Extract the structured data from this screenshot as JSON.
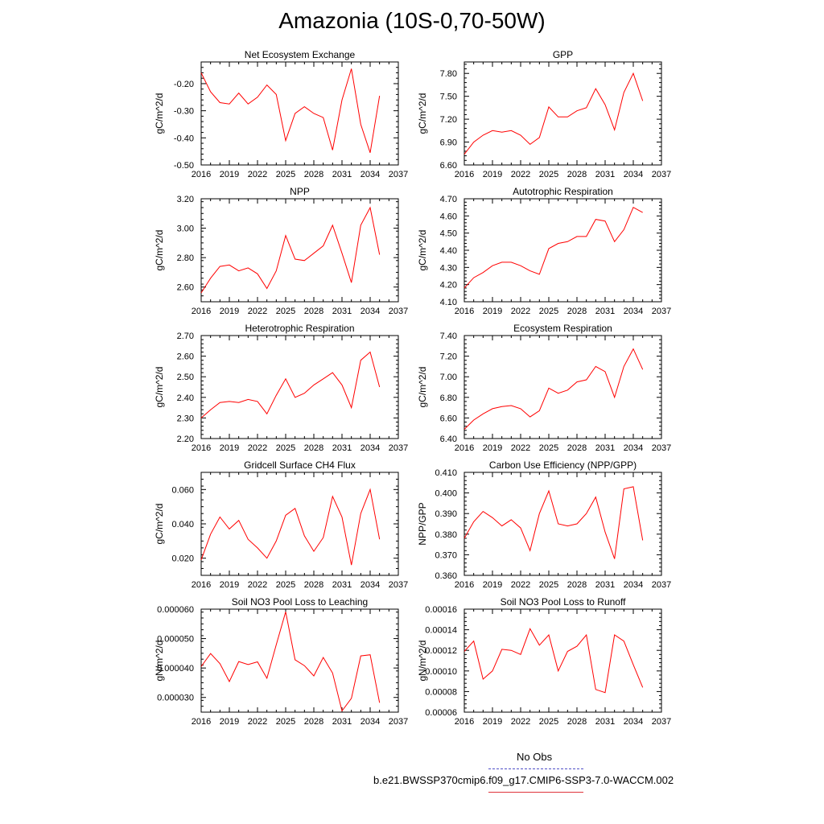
{
  "title": "Amazonia (10S-0,70-50W)",
  "legend": {
    "obs_label": "No Obs",
    "run_label": "b.e21.BWSSP370cmip6.f09_g17.CMIP6-SSP3-7.0-WACCM.002",
    "obs_color": "#5050c8",
    "run_color": "#e0343c"
  },
  "colors": {
    "line": "#ff0000",
    "axis": "#000000"
  },
  "chart_data": [
    {
      "type": "line",
      "title": "Net Ecosystem Exchange",
      "ylabel": "gC/m^2/d",
      "xlim": [
        2016,
        2037
      ],
      "ylim": [
        -0.5,
        -0.12
      ],
      "x_ticks": [
        "2016",
        "2019",
        "2022",
        "2025",
        "2028",
        "2031",
        "2034",
        "2037"
      ],
      "y_ticks": [
        "-0.20",
        "-0.30",
        "-0.40",
        "-0.50"
      ],
      "y_tick_values": [
        -0.2,
        -0.3,
        -0.4,
        -0.5
      ],
      "x": [
        2016,
        2017,
        2018,
        2019,
        2020,
        2021,
        2022,
        2023,
        2024,
        2025,
        2026,
        2027,
        2028,
        2029,
        2030,
        2031,
        2032,
        2033,
        2034,
        2035
      ],
      "values": [
        -0.16,
        -0.23,
        -0.27,
        -0.275,
        -0.235,
        -0.275,
        -0.25,
        -0.205,
        -0.24,
        -0.41,
        -0.31,
        -0.285,
        -0.31,
        -0.325,
        -0.445,
        -0.26,
        -0.145,
        -0.35,
        -0.455,
        -0.245
      ]
    },
    {
      "type": "line",
      "title": "GPP",
      "ylabel": "gC/m^2/d",
      "xlim": [
        2016,
        2037
      ],
      "ylim": [
        6.6,
        7.95
      ],
      "x_ticks": [
        "2016",
        "2019",
        "2022",
        "2025",
        "2028",
        "2031",
        "2034",
        "2037"
      ],
      "y_ticks": [
        "7.80",
        "7.50",
        "7.20",
        "6.90",
        "6.60"
      ],
      "y_tick_values": [
        7.8,
        7.5,
        7.2,
        6.9,
        6.6
      ],
      "x": [
        2016,
        2017,
        2018,
        2019,
        2020,
        2021,
        2022,
        2023,
        2024,
        2025,
        2026,
        2027,
        2028,
        2029,
        2030,
        2031,
        2032,
        2033,
        2034,
        2035
      ],
      "values": [
        6.74,
        6.9,
        6.99,
        7.05,
        7.03,
        7.05,
        6.99,
        6.87,
        6.96,
        7.36,
        7.23,
        7.23,
        7.31,
        7.35,
        7.6,
        7.39,
        7.06,
        7.55,
        7.8,
        7.44
      ]
    },
    {
      "type": "line",
      "title": "NPP",
      "ylabel": "gC/m^2/d",
      "xlim": [
        2016,
        2037
      ],
      "ylim": [
        2.5,
        3.2
      ],
      "x_ticks": [
        "2016",
        "2019",
        "2022",
        "2025",
        "2028",
        "2031",
        "2034",
        "2037"
      ],
      "y_ticks": [
        "3.20",
        "3.00",
        "2.80",
        "2.60"
      ],
      "y_tick_values": [
        3.2,
        3.0,
        2.8,
        2.6
      ],
      "x": [
        2016,
        2017,
        2018,
        2019,
        2020,
        2021,
        2022,
        2023,
        2024,
        2025,
        2026,
        2027,
        2028,
        2029,
        2030,
        2031,
        2032,
        2033,
        2034,
        2035
      ],
      "values": [
        2.56,
        2.66,
        2.74,
        2.75,
        2.71,
        2.73,
        2.69,
        2.59,
        2.71,
        2.95,
        2.79,
        2.78,
        2.83,
        2.88,
        3.02,
        2.83,
        2.63,
        3.02,
        3.14,
        2.82
      ]
    },
    {
      "type": "line",
      "title": "Autotrophic Respiration",
      "ylabel": "gC/m^2/d",
      "xlim": [
        2016,
        2037
      ],
      "ylim": [
        4.1,
        4.7
      ],
      "x_ticks": [
        "2016",
        "2019",
        "2022",
        "2025",
        "2028",
        "2031",
        "2034",
        "2037"
      ],
      "y_ticks": [
        "4.70",
        "4.60",
        "4.50",
        "4.40",
        "4.30",
        "4.20",
        "4.10"
      ],
      "y_tick_values": [
        4.7,
        4.6,
        4.5,
        4.4,
        4.3,
        4.2,
        4.1
      ],
      "x": [
        2016,
        2017,
        2018,
        2019,
        2020,
        2021,
        2022,
        2023,
        2024,
        2025,
        2026,
        2027,
        2028,
        2029,
        2030,
        2031,
        2032,
        2033,
        2034,
        2035
      ],
      "values": [
        4.18,
        4.24,
        4.27,
        4.31,
        4.33,
        4.33,
        4.31,
        4.28,
        4.26,
        4.41,
        4.44,
        4.45,
        4.48,
        4.48,
        4.58,
        4.57,
        4.45,
        4.52,
        4.65,
        4.62
      ]
    },
    {
      "type": "line",
      "title": "Heterotrophic Respiration",
      "ylabel": "gC/m^2/d",
      "xlim": [
        2016,
        2037
      ],
      "ylim": [
        2.2,
        2.7
      ],
      "x_ticks": [
        "2016",
        "2019",
        "2022",
        "2025",
        "2028",
        "2031",
        "2034",
        "2037"
      ],
      "y_ticks": [
        "2.70",
        "2.60",
        "2.50",
        "2.40",
        "2.30",
        "2.20"
      ],
      "y_tick_values": [
        2.7,
        2.6,
        2.5,
        2.4,
        2.3,
        2.2
      ],
      "x": [
        2016,
        2017,
        2018,
        2019,
        2020,
        2021,
        2022,
        2023,
        2024,
        2025,
        2026,
        2027,
        2028,
        2029,
        2030,
        2031,
        2032,
        2033,
        2034,
        2035
      ],
      "values": [
        2.3,
        2.34,
        2.375,
        2.38,
        2.375,
        2.39,
        2.38,
        2.32,
        2.41,
        2.49,
        2.4,
        2.42,
        2.46,
        2.49,
        2.52,
        2.46,
        2.35,
        2.58,
        2.62,
        2.45
      ]
    },
    {
      "type": "line",
      "title": "Ecosystem Respiration",
      "ylabel": "gC/m^2/d",
      "xlim": [
        2016,
        2037
      ],
      "ylim": [
        6.4,
        7.4
      ],
      "x_ticks": [
        "2016",
        "2019",
        "2022",
        "2025",
        "2028",
        "2031",
        "2034",
        "2037"
      ],
      "y_ticks": [
        "7.40",
        "7.20",
        "7.00",
        "6.80",
        "6.60",
        "6.40"
      ],
      "y_tick_values": [
        7.4,
        7.2,
        7.0,
        6.8,
        6.6,
        6.4
      ],
      "x": [
        2016,
        2017,
        2018,
        2019,
        2020,
        2021,
        2022,
        2023,
        2024,
        2025,
        2026,
        2027,
        2028,
        2029,
        2030,
        2031,
        2032,
        2033,
        2034,
        2035
      ],
      "values": [
        6.49,
        6.58,
        6.64,
        6.69,
        6.71,
        6.72,
        6.69,
        6.61,
        6.67,
        6.89,
        6.84,
        6.87,
        6.95,
        6.97,
        7.1,
        7.05,
        6.8,
        7.1,
        7.27,
        7.07
      ]
    },
    {
      "type": "line",
      "title": "Gridcell Surface CH4 Flux",
      "ylabel": "gC/m^2/d",
      "xlim": [
        2016,
        2037
      ],
      "ylim": [
        0.01,
        0.07
      ],
      "x_ticks": [
        "2016",
        "2019",
        "2022",
        "2025",
        "2028",
        "2031",
        "2034",
        "2037"
      ],
      "y_ticks": [
        "0.060",
        "0.040",
        "0.020"
      ],
      "y_tick_values": [
        0.06,
        0.04,
        0.02
      ],
      "x": [
        2016,
        2017,
        2018,
        2019,
        2020,
        2021,
        2022,
        2023,
        2024,
        2025,
        2026,
        2027,
        2028,
        2029,
        2030,
        2031,
        2032,
        2033,
        2034,
        2035
      ],
      "values": [
        0.019,
        0.034,
        0.044,
        0.037,
        0.042,
        0.031,
        0.026,
        0.02,
        0.03,
        0.045,
        0.049,
        0.033,
        0.024,
        0.032,
        0.056,
        0.044,
        0.016,
        0.046,
        0.06,
        0.031
      ]
    },
    {
      "type": "line",
      "title": "Carbon Use Efficiency (NPP/GPP)",
      "ylabel": "NPP/GPP",
      "xlim": [
        2016,
        2037
      ],
      "ylim": [
        0.36,
        0.41
      ],
      "x_ticks": [
        "2016",
        "2019",
        "2022",
        "2025",
        "2028",
        "2031",
        "2034",
        "2037"
      ],
      "y_ticks": [
        "0.410",
        "0.400",
        "0.390",
        "0.380",
        "0.370",
        "0.360"
      ],
      "y_tick_values": [
        0.41,
        0.4,
        0.39,
        0.38,
        0.37,
        0.36
      ],
      "x": [
        2016,
        2017,
        2018,
        2019,
        2020,
        2021,
        2022,
        2023,
        2024,
        2025,
        2026,
        2027,
        2028,
        2029,
        2030,
        2031,
        2032,
        2033,
        2034,
        2035
      ],
      "values": [
        0.378,
        0.386,
        0.391,
        0.388,
        0.384,
        0.387,
        0.383,
        0.372,
        0.39,
        0.401,
        0.385,
        0.384,
        0.385,
        0.39,
        0.398,
        0.381,
        0.368,
        0.402,
        0.403,
        0.377
      ]
    },
    {
      "type": "line",
      "title": "Soil NO3 Pool Loss to Leaching",
      "ylabel": "gN/m^2/d",
      "xlim": [
        2016,
        2037
      ],
      "ylim": [
        2.5e-05,
        6e-05
      ],
      "x_ticks": [
        "2016",
        "2019",
        "2022",
        "2025",
        "2028",
        "2031",
        "2034",
        "2037"
      ],
      "y_ticks": [
        "0.000060",
        "0.000050",
        "0.000040",
        "0.000030"
      ],
      "y_tick_values": [
        6e-05,
        5e-05,
        4e-05,
        3e-05
      ],
      "x": [
        2016,
        2017,
        2018,
        2019,
        2020,
        2021,
        2022,
        2023,
        2024,
        2025,
        2026,
        2027,
        2028,
        2029,
        2030,
        2031,
        2032,
        2033,
        2034,
        2035
      ],
      "values": [
        4.05e-05,
        4.49e-05,
        4.15e-05,
        3.54e-05,
        4.22e-05,
        4.12e-05,
        4.21e-05,
        3.65e-05,
        4.79e-05,
        5.91e-05,
        4.28e-05,
        4.08e-05,
        3.73e-05,
        4.36e-05,
        3.83e-05,
        2.54e-05,
        2.97e-05,
        4.41e-05,
        4.45e-05,
        2.82e-05
      ]
    },
    {
      "type": "line",
      "title": "Soil NO3 Pool Loss to Runoff",
      "ylabel": "gN/m^2/d",
      "xlim": [
        2016,
        2037
      ],
      "ylim": [
        6e-05,
        0.00016
      ],
      "x_ticks": [
        "2016",
        "2019",
        "2022",
        "2025",
        "2028",
        "2031",
        "2034",
        "2037"
      ],
      "y_ticks": [
        "0.00016",
        "0.00014",
        "0.00012",
        "0.00010",
        "0.00008",
        "0.00006"
      ],
      "y_tick_values": [
        0.00016,
        0.00014,
        0.00012,
        0.0001,
        8e-05,
        6e-05
      ],
      "x": [
        2016,
        2017,
        2018,
        2019,
        2020,
        2021,
        2022,
        2023,
        2024,
        2025,
        2026,
        2027,
        2028,
        2029,
        2030,
        2031,
        2032,
        2033,
        2034,
        2035
      ],
      "values": [
        0.000119,
        0.000129,
        9.2e-05,
        0.0001,
        0.000121,
        0.00012,
        0.000116,
        0.000141,
        0.000125,
        0.000135,
        0.0001,
        0.000119,
        0.000124,
        0.000135,
        8.2e-05,
        7.9e-05,
        0.000135,
        0.000129,
        0.000106,
        8.4e-05
      ]
    }
  ]
}
